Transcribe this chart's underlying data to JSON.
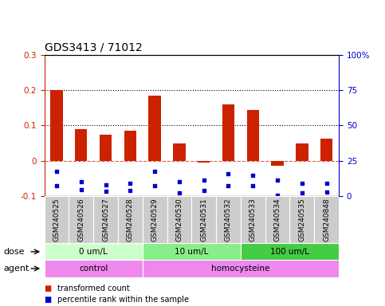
{
  "title": "GDS3413 / 71012",
  "samples": [
    "GSM240525",
    "GSM240526",
    "GSM240527",
    "GSM240528",
    "GSM240529",
    "GSM240530",
    "GSM240531",
    "GSM240532",
    "GSM240533",
    "GSM240534",
    "GSM240535",
    "GSM240848"
  ],
  "transformed_count": [
    0.201,
    0.09,
    0.073,
    0.085,
    0.185,
    0.05,
    -0.005,
    0.16,
    0.143,
    -0.015,
    0.05,
    0.062
  ],
  "percentile_rank_upper": [
    -0.03,
    -0.06,
    -0.068,
    -0.065,
    -0.03,
    -0.06,
    -0.055,
    -0.038,
    -0.042,
    -0.055,
    -0.065,
    -0.065
  ],
  "percentile_rank_lower": [
    -0.07,
    -0.082,
    -0.088,
    -0.085,
    -0.07,
    -0.092,
    -0.085,
    -0.07,
    -0.072,
    -0.098,
    -0.092,
    -0.09
  ],
  "ylim_left": [
    -0.1,
    0.3
  ],
  "ylim_right": [
    0,
    100
  ],
  "bar_color_red": "#cc2200",
  "bar_color_blue": "#0000cc",
  "legend_red_label": "transformed count",
  "legend_blue_label": "percentile rank within the sample",
  "dose_label": "dose",
  "agent_label": "agent",
  "dose_green_light": "#ccffcc",
  "dose_green_mid": "#88ee88",
  "dose_green_dark": "#44cc44",
  "agent_pink": "#ee88ee",
  "sample_bg": "#cccccc",
  "dose_groups": [
    {
      "label": "0 um/L",
      "start": 0,
      "end": 4
    },
    {
      "label": "10 um/L",
      "start": 4,
      "end": 8
    },
    {
      "label": "100 um/L",
      "start": 8,
      "end": 12
    }
  ],
  "dose_colors": [
    "#ccffcc",
    "#88ee88",
    "#44cc44"
  ],
  "agent_groups": [
    {
      "label": "control",
      "start": 0,
      "end": 4
    },
    {
      "label": "homocysteine",
      "start": 4,
      "end": 12
    }
  ],
  "agent_color": "#ee88ee"
}
